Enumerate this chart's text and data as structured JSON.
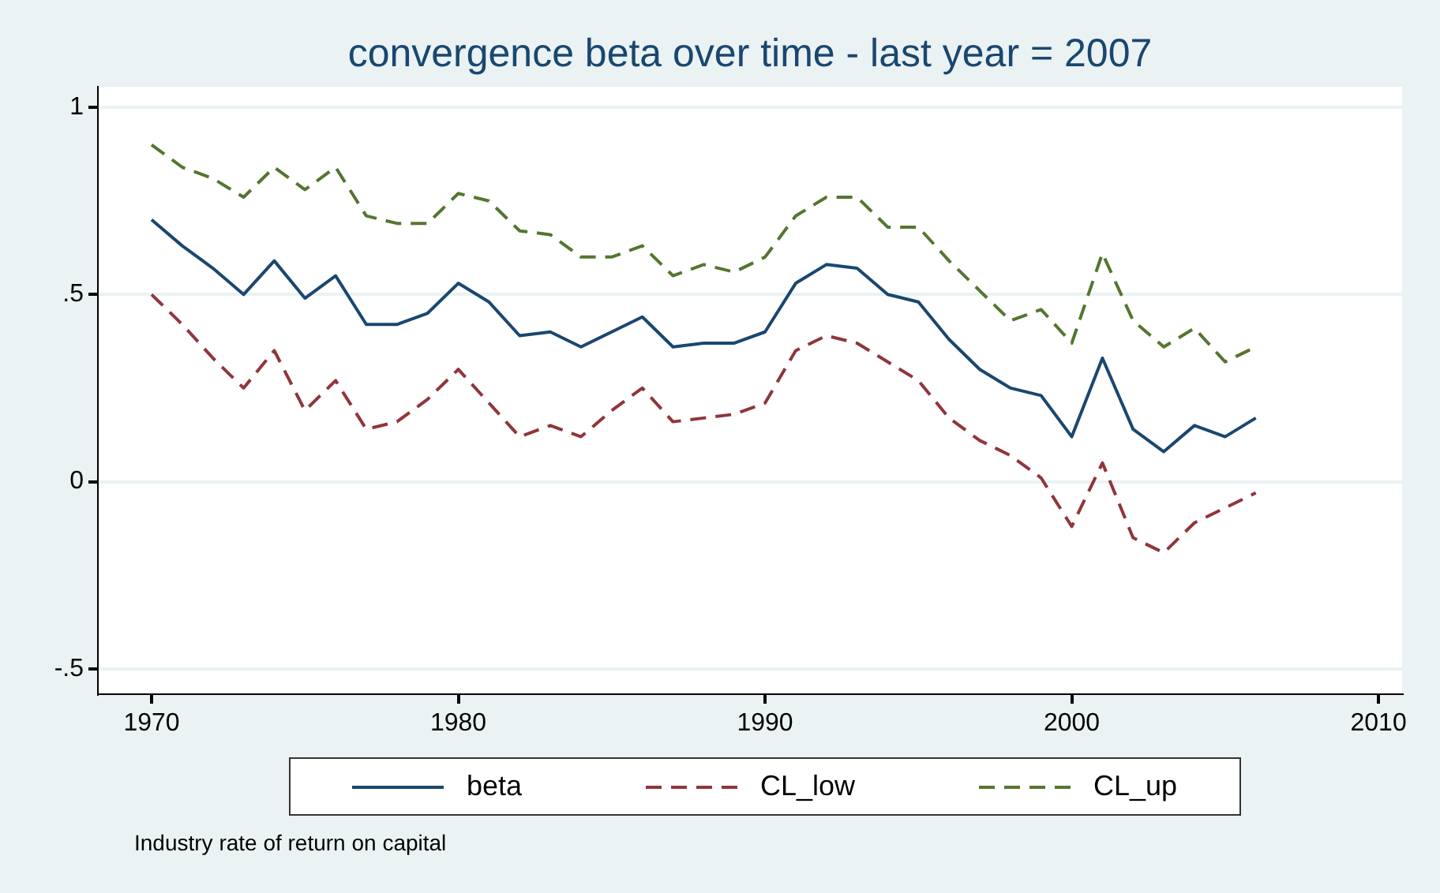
{
  "chart_data": {
    "type": "line",
    "title": "convergence beta over time - last year = 2007",
    "x": [
      1970,
      1971,
      1972,
      1973,
      1974,
      1975,
      1976,
      1977,
      1978,
      1979,
      1980,
      1981,
      1982,
      1983,
      1984,
      1985,
      1986,
      1987,
      1988,
      1989,
      1990,
      1991,
      1992,
      1993,
      1994,
      1995,
      1996,
      1997,
      1998,
      1999,
      2000,
      2001,
      2002,
      2003,
      2004,
      2005,
      2006
    ],
    "series": [
      {
        "name": "beta",
        "color": "#1a476f",
        "line_style": "solid",
        "values": [
          0.7,
          0.63,
          0.57,
          0.5,
          0.59,
          0.49,
          0.55,
          0.42,
          0.42,
          0.45,
          0.53,
          0.48,
          0.39,
          0.4,
          0.36,
          0.4,
          0.44,
          0.36,
          0.37,
          0.37,
          0.4,
          0.53,
          0.58,
          0.57,
          0.5,
          0.48,
          0.38,
          0.3,
          0.25,
          0.23,
          0.12,
          0.33,
          0.14,
          0.08,
          0.15,
          0.12,
          0.17
        ]
      },
      {
        "name": "CL_low",
        "color": "#90353b",
        "line_style": "dashed",
        "values": [
          0.5,
          0.42,
          0.33,
          0.25,
          0.35,
          0.19,
          0.27,
          0.14,
          0.16,
          0.22,
          0.3,
          0.21,
          0.12,
          0.15,
          0.12,
          0.19,
          0.25,
          0.16,
          0.17,
          0.18,
          0.21,
          0.35,
          0.39,
          0.37,
          0.32,
          0.27,
          0.17,
          0.11,
          0.07,
          0.01,
          -0.12,
          0.05,
          -0.15,
          -0.19,
          -0.11,
          -0.07,
          -0.03
        ]
      },
      {
        "name": "CL_up",
        "color": "#55752f",
        "line_style": "dashed",
        "values": [
          0.9,
          0.84,
          0.81,
          0.76,
          0.84,
          0.78,
          0.84,
          0.71,
          0.69,
          0.69,
          0.77,
          0.75,
          0.67,
          0.66,
          0.6,
          0.6,
          0.63,
          0.55,
          0.58,
          0.56,
          0.6,
          0.71,
          0.76,
          0.76,
          0.68,
          0.68,
          0.59,
          0.51,
          0.43,
          0.46,
          0.37,
          0.61,
          0.43,
          0.36,
          0.41,
          0.32,
          0.36
        ]
      }
    ],
    "xlim": [
      1968.25,
      2010.77
    ],
    "xticks": [
      1970,
      1980,
      1990,
      2000,
      2010
    ],
    "ylim": [
      -0.568,
      1.055
    ],
    "yticks": [
      {
        "value": -0.5,
        "label": "-.5"
      },
      {
        "value": 0,
        "label": "0"
      },
      {
        "value": 0.5,
        "label": ".5"
      },
      {
        "value": 1,
        "label": "1"
      }
    ],
    "grid": "y",
    "legend": "bottom",
    "marker": "none",
    "annotations": [
      "Industry rate of return on capital"
    ]
  }
}
